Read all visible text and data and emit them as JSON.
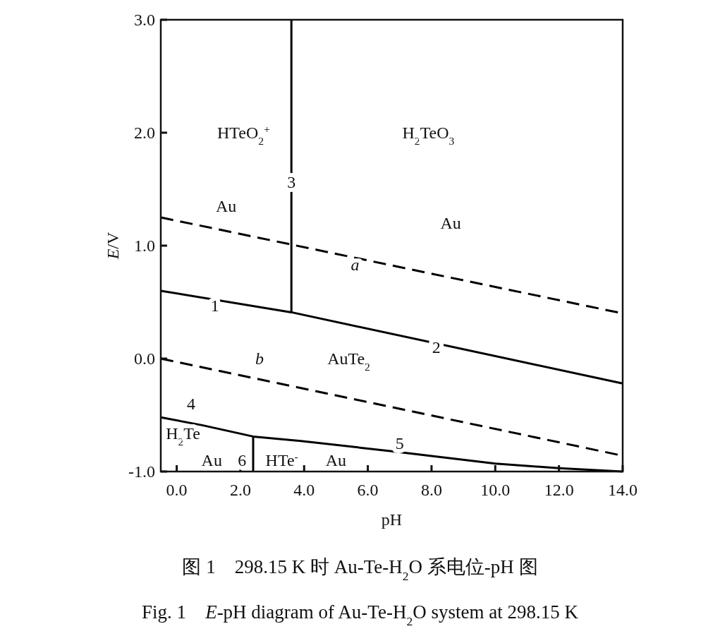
{
  "chart_data": {
    "type": "line",
    "title": "图 1　298.15 K 时 Au-Te-H$_{2}$O 系电位-pH 图",
    "subtitle": "Fig. 1　*E*-pH diagram of Au-Te-H$_{2}$O system at 298.15 K",
    "xlabel": "pH",
    "ylabel": "*E*/V",
    "xlim": [
      -0.5,
      14
    ],
    "ylim": [
      -1,
      3
    ],
    "xticks": [
      {
        "value": 0,
        "label": "0.0"
      },
      {
        "value": 2,
        "label": "2.0"
      },
      {
        "value": 4,
        "label": "4.0"
      },
      {
        "value": 6,
        "label": "6.0"
      },
      {
        "value": 8,
        "label": "8.0"
      },
      {
        "value": 10,
        "label": "10.0"
      },
      {
        "value": 12,
        "label": "12.0"
      },
      {
        "value": 14,
        "label": "14.0"
      }
    ],
    "yticks": [
      {
        "value": -1,
        "label": "-1.0"
      },
      {
        "value": 0,
        "label": "0.0"
      },
      {
        "value": 1,
        "label": "1.0"
      },
      {
        "value": 2,
        "label": "2.0"
      },
      {
        "value": 3,
        "label": "3.0"
      }
    ],
    "series": [
      {
        "line_style": "dashed",
        "color": "#000000",
        "x": [
          -0.5,
          14
        ],
        "values": [
          1.25,
          0.4
        ]
      },
      {
        "line_style": "solid",
        "color": "#000000",
        "x": [
          -0.5,
          3.6,
          14
        ],
        "values": [
          0.6,
          0.41,
          -0.22
        ]
      },
      {
        "line_style": "solid",
        "color": "#000000",
        "x": [
          3.6,
          3.6
        ],
        "values": [
          0.41,
          3
        ]
      },
      {
        "line_style": "dashed",
        "color": "#000000",
        "x": [
          -0.5,
          14
        ],
        "values": [
          0.0,
          -0.86
        ]
      },
      {
        "line_style": "solid",
        "color": "#000000",
        "x": [
          -0.5,
          0.8,
          2.4,
          3.9,
          6.75,
          10,
          12,
          14
        ],
        "values": [
          -0.52,
          -0.59,
          -0.69,
          -0.73,
          -0.82,
          -0.93,
          -0.97,
          -1.0
        ]
      },
      {
        "line_style": "solid",
        "color": "#000000",
        "x": [
          2.4,
          2.4
        ],
        "values": [
          -1.0,
          -0.69
        ]
      }
    ],
    "annotations": [
      "HTeO$_{2}$$^{+}$",
      "H$_{2}$TeO$_{3}$",
      "3",
      "Au",
      "Au",
      "*a*",
      "1",
      "2",
      "*b*",
      "AuTe$_{2}$",
      "4",
      "H$_{2}$Te",
      "Au",
      "6",
      "HTe$^{-}$",
      "Au",
      "5"
    ]
  }
}
